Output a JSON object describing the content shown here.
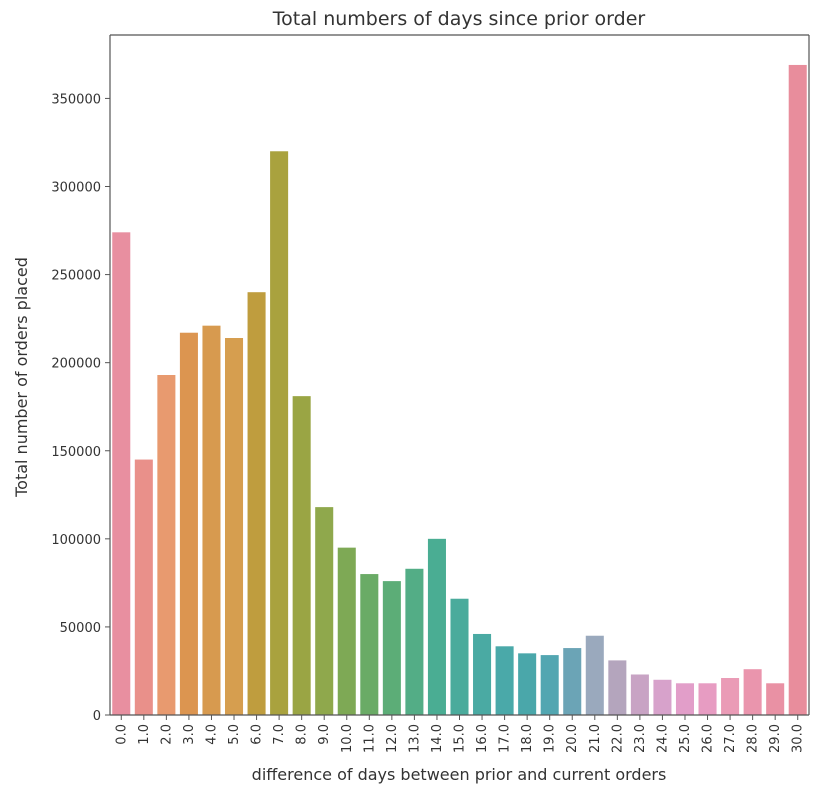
{
  "chart_data": {
    "type": "bar",
    "title": "Total numbers of days since prior order",
    "xlabel": "difference of days between prior and current orders",
    "ylabel": "Total number of orders placed",
    "ylim": [
      0,
      386000
    ],
    "yticks": [
      0,
      50000,
      100000,
      150000,
      200000,
      250000,
      300000,
      350000
    ],
    "ytick_labels": [
      "0",
      "50000",
      "100000",
      "150000",
      "200000",
      "250000",
      "300000",
      "350000"
    ],
    "categories": [
      "0.0",
      "1.0",
      "2.0",
      "3.0",
      "4.0",
      "5.0",
      "6.0",
      "7.0",
      "8.0",
      "9.0",
      "10.0",
      "11.0",
      "12.0",
      "13.0",
      "14.0",
      "15.0",
      "16.0",
      "17.0",
      "18.0",
      "19.0",
      "20.0",
      "21.0",
      "22.0",
      "23.0",
      "24.0",
      "25.0",
      "26.0",
      "27.0",
      "28.0",
      "29.0",
      "30.0"
    ],
    "values": [
      274000,
      145000,
      193000,
      217000,
      221000,
      214000,
      240000,
      320000,
      181000,
      118000,
      95000,
      80000,
      76000,
      83000,
      100000,
      66000,
      46000,
      39000,
      35000,
      34000,
      38000,
      45000,
      31000,
      23000,
      20000,
      18000,
      18000,
      21000,
      26000,
      18000,
      369000
    ],
    "colors": [
      "#e88fa0",
      "#e9908a",
      "#e89a6f",
      "#dc9550",
      "#d79a4f",
      "#d69e4f",
      "#bf9d3e",
      "#a9a23e",
      "#9aa544",
      "#8fa84c",
      "#7ea955",
      "#6aab66",
      "#5cad77",
      "#53ad86",
      "#4aad93",
      "#4aab9c",
      "#4aaaa3",
      "#4aa9a9",
      "#4aa7aa",
      "#52a6b1",
      "#6ba4b6",
      "#9aa9bd",
      "#b4a5bd",
      "#c8a3c4",
      "#d7a2cb",
      "#e29ec9",
      "#e79cc2",
      "#ea9bb6",
      "#ea95ad",
      "#e991a4",
      "#e88d9c"
    ]
  }
}
